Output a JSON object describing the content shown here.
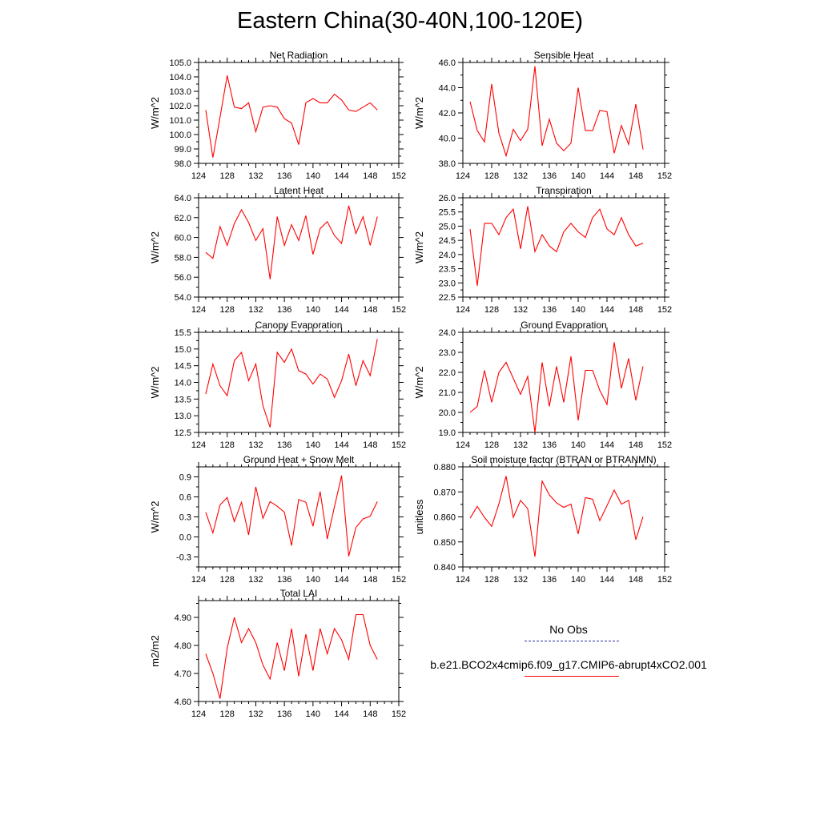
{
  "figure_title": "Eastern China(30-40N,100-120E)",
  "colors": {
    "model": "#ff0000",
    "obs": "#3333aa",
    "axis": "#000000"
  },
  "legend": {
    "obs_label": "No Obs",
    "model_label": "b.e21.BCO2x4cmip6.f09_g17.CMIP6-abrupt4xCO2.001"
  },
  "chart_data": [
    {
      "type": "line",
      "title": "Net Radiation",
      "xlabel": "",
      "ylabel": "W/m^2",
      "xlim": [
        124,
        152
      ],
      "ylim": [
        98.0,
        105.0
      ],
      "xticks": [
        124,
        128,
        132,
        136,
        140,
        144,
        148,
        152
      ],
      "yticks": [
        98.0,
        99.0,
        100.0,
        101.0,
        102.0,
        103.0,
        104.0,
        105.0
      ],
      "ydec": 1,
      "x": [
        125,
        126,
        127,
        128,
        129,
        130,
        131,
        132,
        133,
        134,
        135,
        136,
        137,
        138,
        139,
        140,
        141,
        142,
        143,
        144,
        145,
        146,
        147,
        148,
        149
      ],
      "series": [
        {
          "name": "b.e21.BCO2x4cmip6.f09_g17.CMIP6-abrupt4xCO2.001",
          "values": [
            101.7,
            98.4,
            101.2,
            104.1,
            101.9,
            101.8,
            102.2,
            100.2,
            101.9,
            102.0,
            101.9,
            101.1,
            100.8,
            99.3,
            102.2,
            102.5,
            102.2,
            102.2,
            102.8,
            102.4,
            101.7,
            101.6,
            101.9,
            102.2,
            101.7
          ]
        }
      ]
    },
    {
      "type": "line",
      "title": "Sensible Heat",
      "xlabel": "",
      "ylabel": "W/m^2",
      "xlim": [
        124,
        152
      ],
      "ylim": [
        38.0,
        46.0
      ],
      "xticks": [
        124,
        128,
        132,
        136,
        140,
        144,
        148,
        152
      ],
      "yticks": [
        38.0,
        40.0,
        42.0,
        44.0,
        46.0
      ],
      "ydec": 1,
      "x": [
        125,
        126,
        127,
        128,
        129,
        130,
        131,
        132,
        133,
        134,
        135,
        136,
        137,
        138,
        139,
        140,
        141,
        142,
        143,
        144,
        145,
        146,
        147,
        148,
        149
      ],
      "series": [
        {
          "name": "b.e21.BCO2x4cmip6.f09_g17.CMIP6-abrupt4xCO2.001",
          "values": [
            42.9,
            40.6,
            39.7,
            44.3,
            40.4,
            38.6,
            40.7,
            39.8,
            40.7,
            45.7,
            39.4,
            41.5,
            39.6,
            39.0,
            39.6,
            44.0,
            40.6,
            40.6,
            42.2,
            42.1,
            38.8,
            41.0,
            39.5,
            42.7,
            39.1
          ]
        }
      ]
    },
    {
      "type": "line",
      "title": "Latent Heat",
      "xlabel": "",
      "ylabel": "W/m^2",
      "xlim": [
        124,
        152
      ],
      "ylim": [
        54.0,
        64.0
      ],
      "xticks": [
        124,
        128,
        132,
        136,
        140,
        144,
        148,
        152
      ],
      "yticks": [
        54.0,
        56.0,
        58.0,
        60.0,
        62.0,
        64.0
      ],
      "ydec": 1,
      "x": [
        125,
        126,
        127,
        128,
        129,
        130,
        131,
        132,
        133,
        134,
        135,
        136,
        137,
        138,
        139,
        140,
        141,
        142,
        143,
        144,
        145,
        146,
        147,
        148,
        149
      ],
      "series": [
        {
          "name": "b.e21.BCO2x4cmip6.f09_g17.CMIP6-abrupt4xCO2.001",
          "values": [
            58.5,
            57.9,
            61.1,
            59.2,
            61.4,
            62.8,
            61.5,
            59.7,
            60.9,
            55.8,
            62.1,
            59.2,
            61.3,
            59.7,
            62.2,
            58.3,
            60.9,
            61.6,
            60.2,
            59.4,
            63.2,
            60.4,
            62.1,
            59.2,
            62.1
          ]
        }
      ]
    },
    {
      "type": "line",
      "title": "Transpiration",
      "xlabel": "",
      "ylabel": "W/m^2",
      "xlim": [
        124,
        152
      ],
      "ylim": [
        22.5,
        26.0
      ],
      "xticks": [
        124,
        128,
        132,
        136,
        140,
        144,
        148,
        152
      ],
      "yticks": [
        22.5,
        23.0,
        23.5,
        24.0,
        24.5,
        25.0,
        25.5,
        26.0
      ],
      "ydec": 1,
      "x": [
        125,
        126,
        127,
        128,
        129,
        130,
        131,
        132,
        133,
        134,
        135,
        136,
        137,
        138,
        139,
        140,
        141,
        142,
        143,
        144,
        145,
        146,
        147,
        148,
        149
      ],
      "series": [
        {
          "name": "b.e21.BCO2x4cmip6.f09_g17.CMIP6-abrupt4xCO2.001",
          "values": [
            24.9,
            22.9,
            25.1,
            25.1,
            24.7,
            25.3,
            25.6,
            24.2,
            25.7,
            24.1,
            24.7,
            24.3,
            24.1,
            24.8,
            25.1,
            24.8,
            24.6,
            25.3,
            25.6,
            24.9,
            24.7,
            25.3,
            24.7,
            24.3,
            24.4
          ]
        }
      ]
    },
    {
      "type": "line",
      "title": "Canopy Evaporation",
      "xlabel": "",
      "ylabel": "W/m^2",
      "xlim": [
        124,
        152
      ],
      "ylim": [
        12.5,
        15.5
      ],
      "xticks": [
        124,
        128,
        132,
        136,
        140,
        144,
        148,
        152
      ],
      "yticks": [
        12.5,
        13.0,
        13.5,
        14.0,
        14.5,
        15.0,
        15.5
      ],
      "ydec": 1,
      "x": [
        125,
        126,
        127,
        128,
        129,
        130,
        131,
        132,
        133,
        134,
        135,
        136,
        137,
        138,
        139,
        140,
        141,
        142,
        143,
        144,
        145,
        146,
        147,
        148,
        149
      ],
      "series": [
        {
          "name": "b.e21.BCO2x4cmip6.f09_g17.CMIP6-abrupt4xCO2.001",
          "values": [
            13.65,
            14.55,
            13.9,
            13.6,
            14.65,
            14.9,
            14.05,
            14.55,
            13.3,
            12.65,
            14.9,
            14.6,
            15.0,
            14.35,
            14.25,
            13.95,
            14.25,
            14.1,
            13.55,
            14.05,
            14.85,
            13.9,
            14.65,
            14.2,
            15.3
          ]
        }
      ]
    },
    {
      "type": "line",
      "title": "Ground Evaporation",
      "xlabel": "",
      "ylabel": "W/m^2",
      "xlim": [
        124,
        152
      ],
      "ylim": [
        19.0,
        24.0
      ],
      "xticks": [
        124,
        128,
        132,
        136,
        140,
        144,
        148,
        152
      ],
      "yticks": [
        19.0,
        20.0,
        21.0,
        22.0,
        23.0,
        24.0
      ],
      "ydec": 1,
      "x": [
        125,
        126,
        127,
        128,
        129,
        130,
        131,
        132,
        133,
        134,
        135,
        136,
        137,
        138,
        139,
        140,
        141,
        142,
        143,
        144,
        145,
        146,
        147,
        148,
        149
      ],
      "series": [
        {
          "name": "b.e21.BCO2x4cmip6.f09_g17.CMIP6-abrupt4xCO2.001",
          "values": [
            20.0,
            20.3,
            22.1,
            20.5,
            22.0,
            22.5,
            21.7,
            20.9,
            21.8,
            19.0,
            22.5,
            20.3,
            22.3,
            20.5,
            22.8,
            19.6,
            22.1,
            22.1,
            21.1,
            20.4,
            23.5,
            21.2,
            22.7,
            20.6,
            22.3
          ]
        }
      ]
    },
    {
      "type": "line",
      "title": "Ground Heat + Snow Melt",
      "xlabel": "",
      "ylabel": "W/m^2",
      "xlim": [
        124,
        152
      ],
      "ylim": [
        -0.45,
        1.05
      ],
      "xticks": [
        124,
        128,
        132,
        136,
        140,
        144,
        148,
        152
      ],
      "yticks": [
        -0.3,
        0.0,
        0.3,
        0.6,
        0.9
      ],
      "ydec": 1,
      "x": [
        125,
        126,
        127,
        128,
        129,
        130,
        131,
        132,
        133,
        134,
        135,
        136,
        137,
        138,
        139,
        140,
        141,
        142,
        143,
        144,
        145,
        146,
        147,
        148,
        149
      ],
      "series": [
        {
          "name": "b.e21.BCO2x4cmip6.f09_g17.CMIP6-abrupt4xCO2.001",
          "values": [
            0.37,
            0.06,
            0.48,
            0.59,
            0.23,
            0.52,
            0.03,
            0.75,
            0.28,
            0.53,
            0.46,
            0.37,
            -0.13,
            0.56,
            0.52,
            0.16,
            0.68,
            -0.03,
            0.45,
            0.92,
            -0.29,
            0.14,
            0.27,
            0.31,
            0.53
          ]
        }
      ]
    },
    {
      "type": "line",
      "title": "Soil moisture factor (BTRAN or BTRANMN)",
      "xlabel": "",
      "ylabel": "unitless",
      "xlim": [
        124,
        152
      ],
      "ylim": [
        0.84,
        0.88
      ],
      "xticks": [
        124,
        128,
        132,
        136,
        140,
        144,
        148,
        152
      ],
      "yticks": [
        0.84,
        0.85,
        0.86,
        0.87,
        0.88
      ],
      "ydec": 3,
      "x": [
        125,
        126,
        127,
        128,
        129,
        130,
        131,
        132,
        133,
        134,
        135,
        136,
        137,
        138,
        139,
        140,
        141,
        142,
        143,
        144,
        145,
        146,
        147,
        148,
        149
      ],
      "series": [
        {
          "name": "b.e21.BCO2x4cmip6.f09_g17.CMIP6-abrupt4xCO2.001",
          "values": [
            0.8595,
            0.8642,
            0.8598,
            0.8562,
            0.8652,
            0.8763,
            0.8598,
            0.8666,
            0.8633,
            0.8441,
            0.8743,
            0.8688,
            0.8656,
            0.8638,
            0.8651,
            0.8532,
            0.8677,
            0.8671,
            0.8585,
            0.8645,
            0.8707,
            0.8651,
            0.8666,
            0.8509,
            0.8601
          ]
        }
      ]
    },
    {
      "type": "line",
      "title": "Total LAI",
      "xlabel": "",
      "ylabel": "m2/m2",
      "xlim": [
        124,
        152
      ],
      "ylim": [
        4.6,
        4.96
      ],
      "xticks": [
        124,
        128,
        132,
        136,
        140,
        144,
        148,
        152
      ],
      "yticks": [
        4.6,
        4.7,
        4.8,
        4.9
      ],
      "ydec": 2,
      "x": [
        125,
        126,
        127,
        128,
        129,
        130,
        131,
        132,
        133,
        134,
        135,
        136,
        137,
        138,
        139,
        140,
        141,
        142,
        143,
        144,
        145,
        146,
        147,
        148,
        149
      ],
      "series": [
        {
          "name": "b.e21.BCO2x4cmip6.f09_g17.CMIP6-abrupt4xCO2.001",
          "values": [
            4.77,
            4.7,
            4.61,
            4.79,
            4.9,
            4.81,
            4.86,
            4.81,
            4.73,
            4.68,
            4.81,
            4.71,
            4.86,
            4.69,
            4.84,
            4.71,
            4.86,
            4.77,
            4.86,
            4.82,
            4.75,
            4.91,
            4.91,
            4.8,
            4.75
          ]
        }
      ]
    }
  ]
}
